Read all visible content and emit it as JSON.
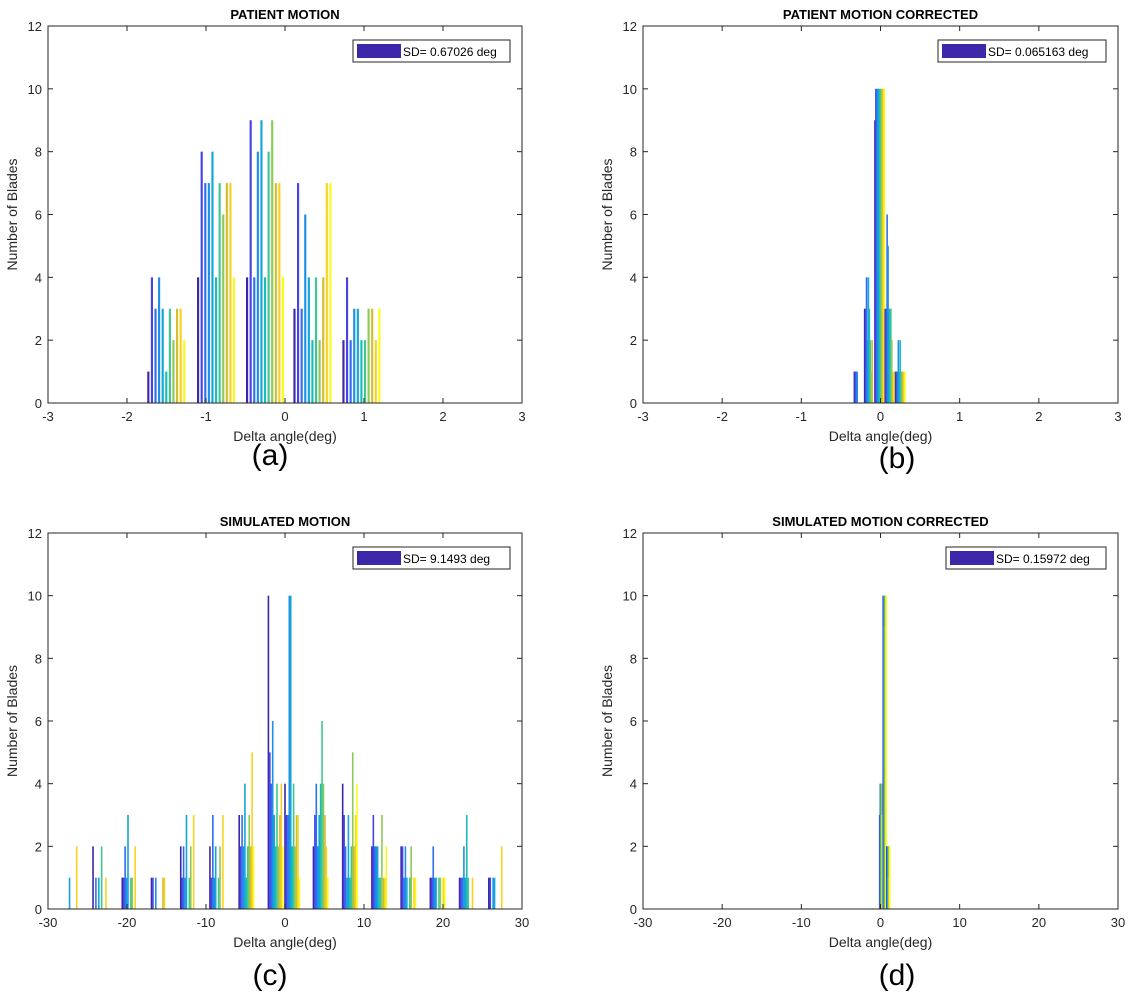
{
  "palette": [
    "#3e26a8",
    "#4743e6",
    "#2f6ef0",
    "#1e8fe8",
    "#12a6d7",
    "#19bcb8",
    "#3ec88f",
    "#8bca58",
    "#d4bd2f",
    "#f9d21f",
    "#f9fb15"
  ],
  "chart_data": [
    {
      "type": "bar",
      "title": "PATIENT MOTION",
      "caption": "(a)",
      "xlabel": "Delta angle(deg)",
      "ylabel": "Number of Blades",
      "xlim": [
        -3,
        3
      ],
      "ylim": [
        0,
        12
      ],
      "xticks": [
        -3,
        -2,
        -1,
        0,
        1,
        2,
        3
      ],
      "yticks": [
        0,
        2,
        4,
        6,
        8,
        10,
        12
      ],
      "legend": {
        "label": "SD= 0.67026 deg",
        "position": "top-right"
      },
      "series_span": 0.5,
      "bars": [
        {
          "x": -1.73,
          "h": [
            1,
            4,
            3,
            4,
            3,
            1,
            3,
            2,
            3,
            3,
            2
          ]
        },
        {
          "x": -1.1,
          "h": [
            4,
            8,
            7,
            7,
            8,
            4,
            7,
            6,
            7,
            7,
            4
          ]
        },
        {
          "x": -0.48,
          "h": [
            4,
            9,
            4,
            8,
            9,
            4,
            8,
            9,
            7,
            7,
            4
          ]
        },
        {
          "x": 0.12,
          "h": [
            3,
            7,
            3,
            6,
            4,
            2,
            4,
            2,
            4,
            7,
            7
          ]
        },
        {
          "x": 0.74,
          "h": [
            2,
            4,
            2,
            3,
            3,
            2,
            2,
            3,
            3,
            2,
            3
          ]
        }
      ]
    },
    {
      "type": "bar",
      "title": "PATIENT MOTION CORRECTED",
      "caption": "(b)",
      "xlabel": "Delta angle(deg)",
      "ylabel": "Number of Blades",
      "xlim": [
        -3,
        3
      ],
      "ylim": [
        0,
        12
      ],
      "xticks": [
        -3,
        -2,
        -1,
        0,
        1,
        2,
        3
      ],
      "yticks": [
        0,
        2,
        4,
        6,
        8,
        10,
        12
      ],
      "legend": {
        "label": "SD= 0.065163 deg",
        "position": "top-right"
      },
      "series_span": 0.13,
      "bars": [
        {
          "x": -0.33,
          "h": [
            1,
            1,
            1,
            1,
            0,
            0,
            0,
            0,
            0,
            0,
            0
          ]
        },
        {
          "x": -0.2,
          "h": [
            3,
            3,
            4,
            2,
            4,
            3,
            2,
            1,
            2,
            0,
            0
          ]
        },
        {
          "x": -0.07,
          "h": [
            9,
            10,
            10,
            10,
            10,
            10,
            10,
            10,
            10,
            10,
            10
          ]
        },
        {
          "x": 0.06,
          "h": [
            3,
            3,
            6,
            5,
            3,
            3,
            3,
            2,
            1,
            1,
            1
          ]
        },
        {
          "x": 0.19,
          "h": [
            1,
            1,
            1,
            2,
            1,
            2,
            1,
            1,
            1,
            1,
            1
          ]
        }
      ]
    },
    {
      "type": "bar",
      "title": "SIMULATED MOTION",
      "caption": "(c)",
      "xlabel": "Delta angle(deg)",
      "ylabel": "Number of Blades",
      "xlim": [
        -30,
        30
      ],
      "ylim": [
        0,
        12
      ],
      "xticks": [
        -30,
        -20,
        -10,
        0,
        10,
        20,
        30
      ],
      "yticks": [
        0,
        2,
        4,
        6,
        8,
        10,
        12
      ],
      "legend": {
        "label": "SD= 9.1493 deg",
        "position": "top-right"
      },
      "series_span": 2.0,
      "bars": [
        {
          "x": -28,
          "h": [
            0,
            0,
            0,
            0,
            1,
            0,
            0,
            0,
            0,
            2,
            0
          ]
        },
        {
          "x": -24.3,
          "h": [
            2,
            0,
            1,
            0,
            1,
            0,
            2,
            0,
            0,
            1,
            0
          ]
        },
        {
          "x": -20.6,
          "h": [
            1,
            1,
            2,
            1,
            3,
            0,
            1,
            1,
            0,
            2,
            0
          ]
        },
        {
          "x": -16.9,
          "h": [
            1,
            1,
            0,
            1,
            0,
            0,
            0,
            0,
            1,
            1,
            0
          ]
        },
        {
          "x": -13.2,
          "h": [
            2,
            1,
            2,
            1,
            3,
            0,
            1,
            2,
            0,
            3,
            0
          ]
        },
        {
          "x": -9.5,
          "h": [
            2,
            1,
            3,
            1,
            2,
            0,
            1,
            2,
            0,
            3,
            0
          ]
        },
        {
          "x": -5.8,
          "h": [
            3,
            2,
            3,
            2,
            4,
            1,
            2,
            3,
            2,
            5,
            2
          ]
        },
        {
          "x": -2.1,
          "h": [
            10,
            5,
            4,
            6,
            3,
            2,
            4,
            2,
            3,
            4,
            2
          ]
        },
        {
          "x": 0.0,
          "h": [
            4,
            3,
            3,
            10,
            10,
            2,
            4,
            2,
            3,
            3,
            1
          ]
        },
        {
          "x": 3.6,
          "h": [
            2,
            3,
            4,
            2,
            3,
            4,
            6,
            4,
            3,
            2,
            1
          ]
        },
        {
          "x": 7.3,
          "h": [
            4,
            3,
            2,
            1,
            3,
            1,
            2,
            5,
            2,
            3,
            4
          ]
        },
        {
          "x": 11.0,
          "h": [
            2,
            3,
            2,
            2,
            2,
            1,
            1,
            3,
            1,
            1,
            2
          ]
        },
        {
          "x": 14.7,
          "h": [
            2,
            2,
            1,
            2,
            1,
            0,
            1,
            2,
            0,
            1,
            1
          ]
        },
        {
          "x": 18.4,
          "h": [
            1,
            1,
            2,
            1,
            1,
            0,
            1,
            1,
            0,
            1,
            1
          ]
        },
        {
          "x": 22.1,
          "h": [
            1,
            1,
            1,
            2,
            1,
            3,
            1,
            0,
            0,
            1,
            0
          ]
        },
        {
          "x": 25.8,
          "h": [
            1,
            1,
            0,
            1,
            1,
            0,
            0,
            0,
            0,
            2,
            0
          ]
        }
      ]
    },
    {
      "type": "bar",
      "title": "SIMULATED MOTION CORRECTED",
      "caption": "(d)",
      "xlabel": "Delta angle(deg)",
      "ylabel": "Number of Blades",
      "xlim": [
        -30,
        30
      ],
      "ylim": [
        0,
        12
      ],
      "xticks": [
        -30,
        -20,
        -10,
        0,
        10,
        20,
        30
      ],
      "yticks": [
        0,
        2,
        4,
        6,
        8,
        10,
        12
      ],
      "legend": {
        "label": "SD= 0.15972 deg",
        "position": "top-right"
      },
      "series_span": 0.4,
      "bars": [
        {
          "x": -0.1,
          "h": [
            3,
            3,
            4,
            3,
            4,
            3,
            4,
            3,
            4,
            3,
            3
          ]
        },
        {
          "x": 0.35,
          "h": [
            10,
            9,
            10,
            9,
            10,
            9,
            10,
            9,
            10,
            9,
            10
          ]
        },
        {
          "x": 0.8,
          "h": [
            2,
            1,
            2,
            1,
            2,
            1,
            2,
            1,
            2,
            1,
            2
          ]
        }
      ]
    }
  ]
}
